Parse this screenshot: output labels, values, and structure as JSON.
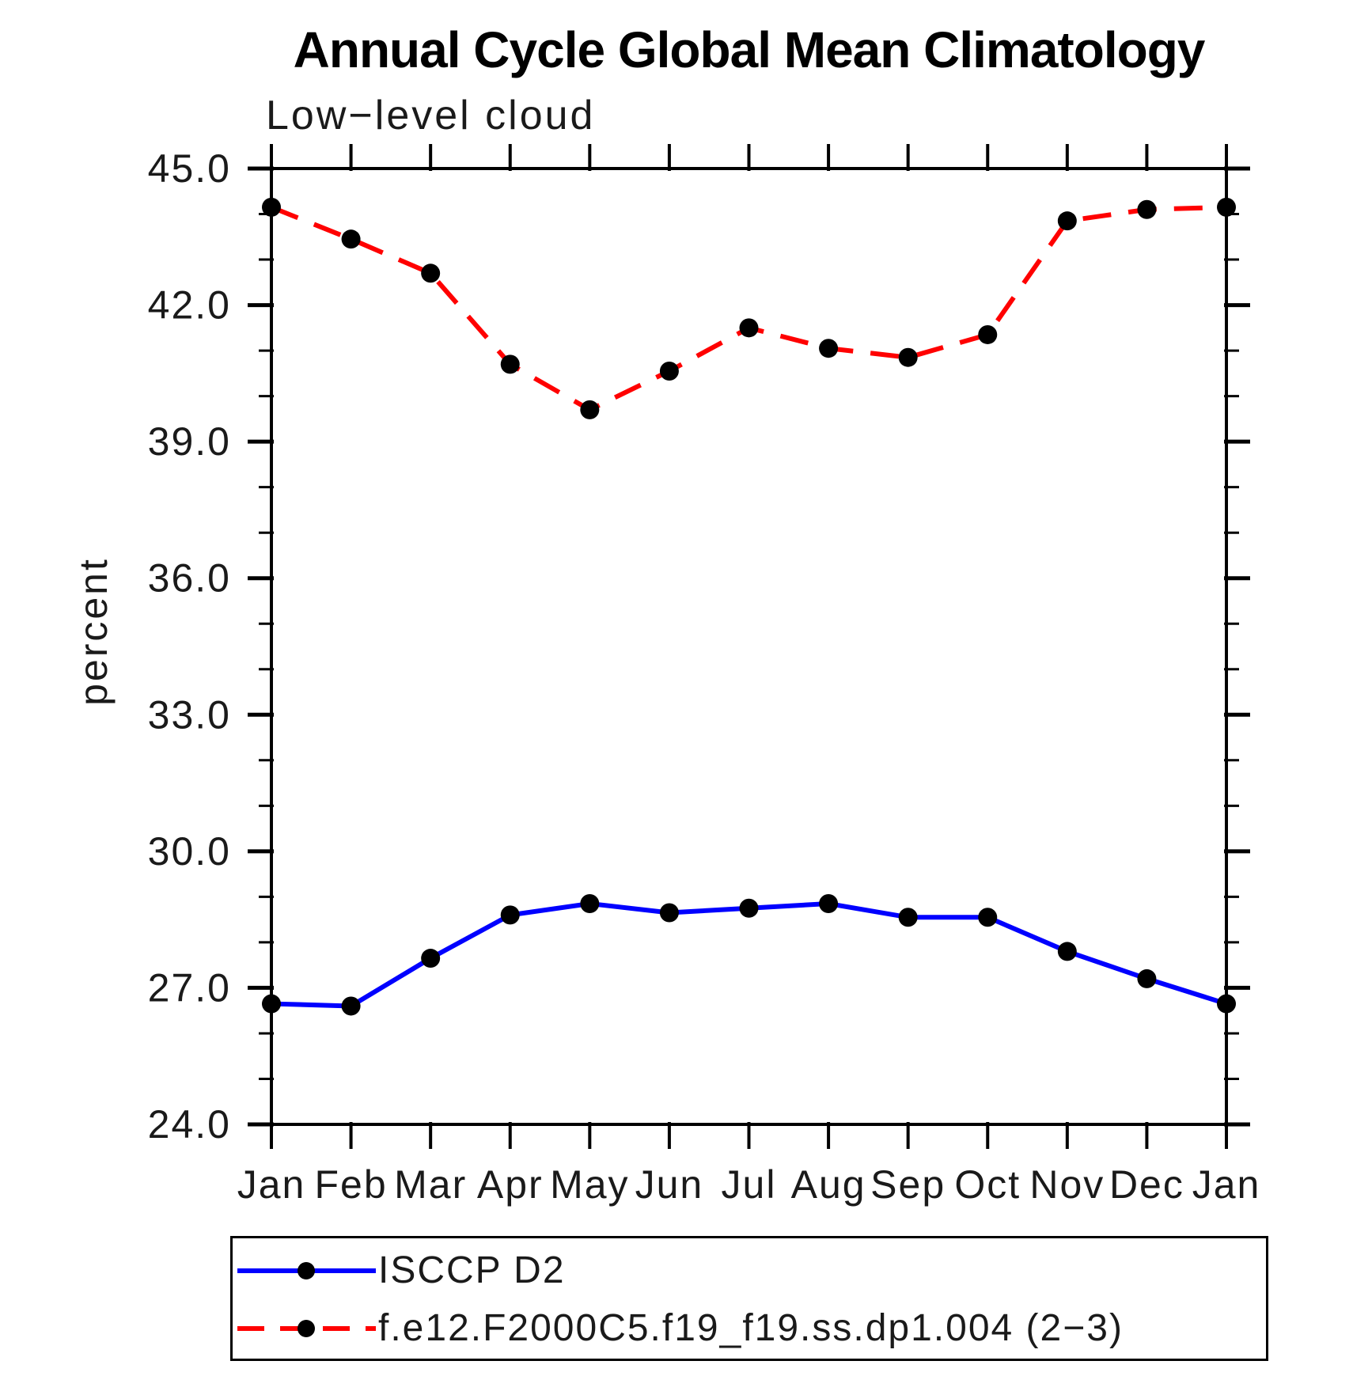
{
  "chart_data": {
    "type": "line",
    "title": "Annual Cycle Global Mean Climatology",
    "subtitle": "Low−level cloud",
    "ylabel": "percent",
    "xlabel": "",
    "categories": [
      "Jan",
      "Feb",
      "Mar",
      "Apr",
      "May",
      "Jun",
      "Jul",
      "Aug",
      "Sep",
      "Oct",
      "Nov",
      "Dec",
      "Jan"
    ],
    "ylim": [
      24.0,
      45.0
    ],
    "ytick_major": [
      24,
      27,
      30,
      33,
      36,
      39,
      42,
      45
    ],
    "ytick_labels": [
      "24.0",
      "27.0",
      "30.0",
      "33.0",
      "36.0",
      "39.0",
      "42.0",
      "45.0"
    ],
    "ytick_minor_step": 1,
    "grid": false,
    "legend_position": "bottom",
    "colors": {
      "axis": "#000000",
      "marker": "#000000"
    },
    "series": [
      {
        "name": "ISCCP D2",
        "color": "#0000ff",
        "style": "solid",
        "marker": "circle",
        "values": [
          26.65,
          26.6,
          27.65,
          28.6,
          28.85,
          28.65,
          28.75,
          28.85,
          28.55,
          28.55,
          27.8,
          27.2,
          26.65
        ]
      },
      {
        "name": "f.e12.F2000C5.f19_f19.ss.dp1.004 (2−3)",
        "color": "#ff0000",
        "style": "dashed",
        "marker": "circle",
        "values": [
          44.15,
          43.45,
          42.7,
          40.7,
          39.7,
          40.55,
          41.5,
          41.05,
          40.85,
          41.35,
          43.85,
          44.1,
          44.15
        ]
      }
    ]
  }
}
